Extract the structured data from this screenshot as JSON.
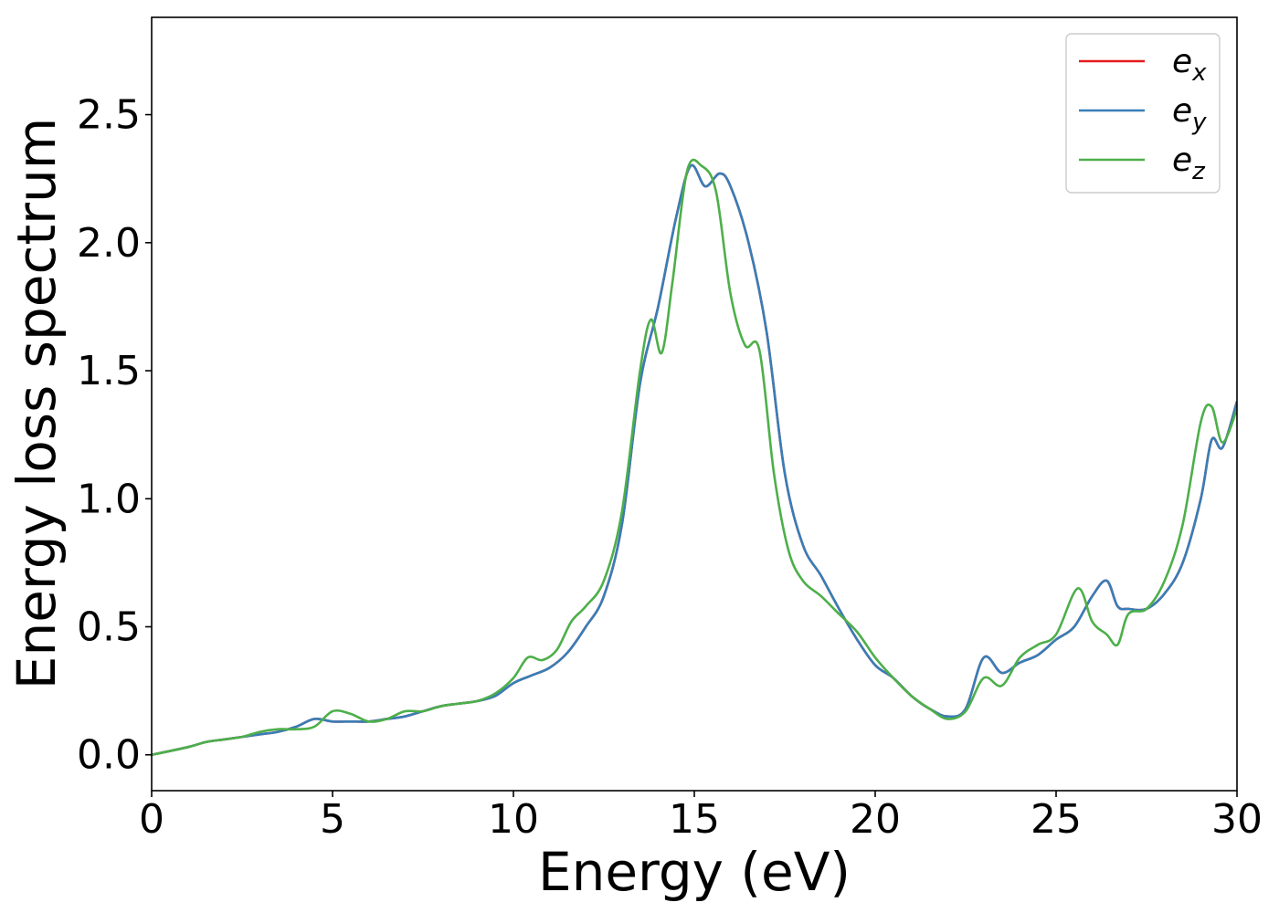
{
  "chart_data": {
    "type": "line",
    "title": "",
    "xlabel": "Energy (eV)",
    "ylabel": "Energy loss spectrum",
    "xlim": [
      0,
      30
    ],
    "ylim": [
      -0.14,
      2.88
    ],
    "xticks": [
      0,
      5,
      10,
      15,
      20,
      25,
      30
    ],
    "yticks": [
      0.0,
      0.5,
      1.0,
      1.5,
      2.0,
      2.5
    ],
    "xtick_labels": [
      "0",
      "5",
      "10",
      "15",
      "20",
      "25",
      "30"
    ],
    "ytick_labels": [
      "0.0",
      "0.5",
      "1.0",
      "1.5",
      "2.0",
      "2.5"
    ],
    "grid": false,
    "legend_position": "top-right",
    "series": [
      {
        "name": "e_x",
        "base": "e",
        "sub": "x",
        "color": "#e41a1c",
        "x": [
          0,
          1,
          1.5,
          2,
          2.5,
          3,
          3.5,
          4,
          4.5,
          5,
          5.5,
          6,
          6.5,
          7,
          7.5,
          8,
          8.5,
          9,
          9.5,
          10,
          10.5,
          11,
          11.5,
          12,
          12.5,
          13,
          13.5,
          14,
          14.5,
          14.9,
          15.3,
          15.7,
          16,
          16.5,
          17,
          17.5,
          18,
          18.5,
          19,
          19.5,
          20,
          20.5,
          21,
          21.5,
          22,
          22.5,
          23,
          23.5,
          24,
          24.5,
          25,
          25.5,
          26,
          26.4,
          26.7,
          27,
          27.5,
          28,
          28.5,
          29,
          29.3,
          29.6,
          30
        ],
        "y": [
          0.0,
          0.03,
          0.05,
          0.06,
          0.07,
          0.08,
          0.09,
          0.11,
          0.14,
          0.13,
          0.13,
          0.13,
          0.14,
          0.15,
          0.17,
          0.19,
          0.2,
          0.21,
          0.23,
          0.28,
          0.31,
          0.34,
          0.4,
          0.5,
          0.62,
          0.9,
          1.45,
          1.75,
          2.1,
          2.3,
          2.22,
          2.27,
          2.22,
          2.0,
          1.65,
          1.1,
          0.82,
          0.7,
          0.57,
          0.45,
          0.35,
          0.3,
          0.23,
          0.18,
          0.15,
          0.18,
          0.38,
          0.32,
          0.36,
          0.39,
          0.45,
          0.5,
          0.62,
          0.68,
          0.58,
          0.57,
          0.57,
          0.63,
          0.75,
          1.0,
          1.23,
          1.2,
          1.38
        ]
      },
      {
        "name": "e_y",
        "base": "e",
        "sub": "y",
        "color": "#377eb8",
        "x": [
          0,
          1,
          1.5,
          2,
          2.5,
          3,
          3.5,
          4,
          4.5,
          5,
          5.5,
          6,
          6.5,
          7,
          7.5,
          8,
          8.5,
          9,
          9.5,
          10,
          10.5,
          11,
          11.5,
          12,
          12.5,
          13,
          13.5,
          14,
          14.5,
          14.9,
          15.3,
          15.7,
          16,
          16.5,
          17,
          17.5,
          18,
          18.5,
          19,
          19.5,
          20,
          20.5,
          21,
          21.5,
          22,
          22.5,
          23,
          23.5,
          24,
          24.5,
          25,
          25.5,
          26,
          26.4,
          26.7,
          27,
          27.5,
          28,
          28.5,
          29,
          29.3,
          29.6,
          30
        ],
        "y": [
          0.0,
          0.03,
          0.05,
          0.06,
          0.07,
          0.08,
          0.09,
          0.11,
          0.14,
          0.13,
          0.13,
          0.13,
          0.14,
          0.15,
          0.17,
          0.19,
          0.2,
          0.21,
          0.23,
          0.28,
          0.31,
          0.34,
          0.4,
          0.5,
          0.62,
          0.9,
          1.45,
          1.75,
          2.1,
          2.3,
          2.22,
          2.27,
          2.22,
          2.0,
          1.65,
          1.1,
          0.82,
          0.7,
          0.57,
          0.45,
          0.35,
          0.3,
          0.23,
          0.18,
          0.15,
          0.18,
          0.38,
          0.32,
          0.36,
          0.39,
          0.45,
          0.5,
          0.62,
          0.68,
          0.58,
          0.57,
          0.57,
          0.63,
          0.75,
          1.0,
          1.23,
          1.2,
          1.38
        ]
      },
      {
        "name": "e_z",
        "base": "e",
        "sub": "z",
        "color": "#4daf4a",
        "x": [
          0,
          1,
          1.5,
          2,
          2.5,
          3,
          3.5,
          4,
          4.5,
          5,
          5.5,
          6,
          6.5,
          7,
          7.5,
          8,
          8.5,
          9,
          9.5,
          10,
          10.4,
          10.8,
          11.2,
          11.6,
          12,
          12.5,
          13,
          13.5,
          13.8,
          14.1,
          14.4,
          14.8,
          15.2,
          15.6,
          16,
          16.4,
          16.8,
          17.2,
          17.6,
          18,
          18.5,
          19,
          19.5,
          20,
          20.5,
          21,
          21.5,
          22,
          22.5,
          23,
          23.5,
          24,
          24.5,
          25,
          25.6,
          26,
          26.4,
          26.7,
          27,
          27.5,
          28,
          28.5,
          29,
          29.3,
          29.6,
          30
        ],
        "y": [
          0.0,
          0.03,
          0.05,
          0.06,
          0.07,
          0.09,
          0.1,
          0.1,
          0.11,
          0.17,
          0.16,
          0.13,
          0.14,
          0.17,
          0.17,
          0.19,
          0.2,
          0.21,
          0.24,
          0.3,
          0.38,
          0.37,
          0.41,
          0.52,
          0.58,
          0.68,
          0.95,
          1.5,
          1.7,
          1.57,
          1.85,
          2.28,
          2.3,
          2.2,
          1.8,
          1.6,
          1.58,
          1.1,
          0.8,
          0.68,
          0.62,
          0.55,
          0.48,
          0.38,
          0.3,
          0.23,
          0.18,
          0.14,
          0.17,
          0.3,
          0.27,
          0.38,
          0.43,
          0.47,
          0.65,
          0.52,
          0.47,
          0.43,
          0.55,
          0.57,
          0.68,
          0.9,
          1.3,
          1.36,
          1.22,
          1.35
        ]
      }
    ]
  }
}
